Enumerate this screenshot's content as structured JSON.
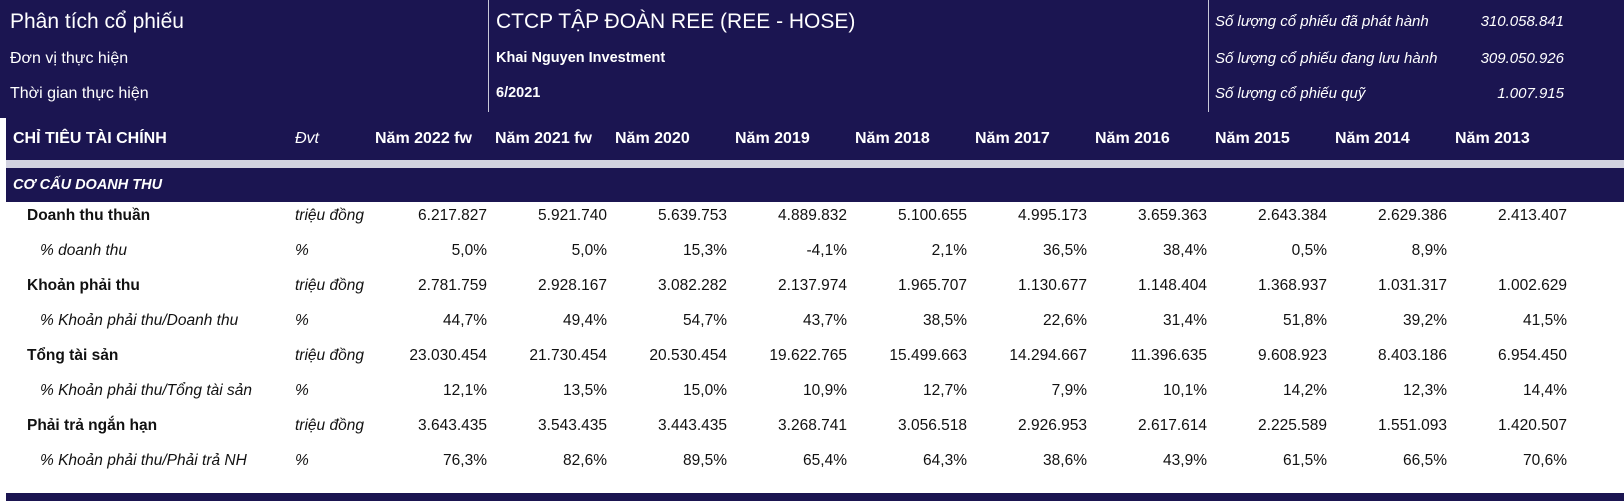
{
  "header": {
    "title": "Phân tích cổ phiếu",
    "unit_label": "Đơn vị thực hiện",
    "time_label": "Thời gian thực hiện",
    "company": "CTCP TẬP ĐOÀN REE (REE - HOSE)",
    "unit_value": "Khai Nguyen Investment",
    "time_value": "6/2021",
    "issued_label": "Số lượng cổ phiếu đã phát hành",
    "issued_value": "310.058.841",
    "outstanding_label": "Số lượng cổ phiếu đang lưu hành",
    "outstanding_value": "309.050.926",
    "treasury_label": "Số lượng cổ phiếu quỹ",
    "treasury_value": "1.007.915"
  },
  "table": {
    "col_indicator": "CHỈ TIÊU TÀI CHÍNH",
    "col_unit": "Đvt",
    "years": [
      "Năm 2022 fw",
      "Năm 2021 fw",
      "Năm 2020",
      "Năm 2019",
      "Năm 2018",
      "Năm 2017",
      "Năm 2016",
      "Năm 2015",
      "Năm 2014",
      "Năm 2013"
    ],
    "section_title": "CƠ CẤU DOANH THU",
    "rows": [
      {
        "label": "Doanh thu thuần",
        "unit": "triệu đồng",
        "bold": true,
        "values": [
          "6.217.827",
          "5.921.740",
          "5.639.753",
          "4.889.832",
          "5.100.655",
          "4.995.173",
          "3.659.363",
          "2.643.384",
          "2.629.386",
          "2.413.407"
        ]
      },
      {
        "label": "% doanh thu",
        "unit": "%",
        "bold": false,
        "values": [
          "5,0%",
          "5,0%",
          "15,3%",
          "-4,1%",
          "2,1%",
          "36,5%",
          "38,4%",
          "0,5%",
          "8,9%",
          ""
        ]
      },
      {
        "label": "Khoản phải thu",
        "unit": "triệu đồng",
        "bold": true,
        "values": [
          "2.781.759",
          "2.928.167",
          "3.082.282",
          "2.137.974",
          "1.965.707",
          "1.130.677",
          "1.148.404",
          "1.368.937",
          "1.031.317",
          "1.002.629"
        ]
      },
      {
        "label": "% Khoản phải thu/Doanh thu",
        "unit": "%",
        "bold": false,
        "values": [
          "44,7%",
          "49,4%",
          "54,7%",
          "43,7%",
          "38,5%",
          "22,6%",
          "31,4%",
          "51,8%",
          "39,2%",
          "41,5%"
        ]
      },
      {
        "label": "Tổng tài sản",
        "unit": "triệu đồng",
        "bold": true,
        "values": [
          "23.030.454",
          "21.730.454",
          "20.530.454",
          "19.622.765",
          "15.499.663",
          "14.294.667",
          "11.396.635",
          "9.608.923",
          "8.403.186",
          "6.954.450"
        ]
      },
      {
        "label": "% Khoản phải thu/Tổng tài sản",
        "unit": "%",
        "bold": false,
        "values": [
          "12,1%",
          "13,5%",
          "15,0%",
          "10,9%",
          "12,7%",
          "7,9%",
          "10,1%",
          "14,2%",
          "12,3%",
          "14,4%"
        ]
      },
      {
        "label": "Phải trả ngắn hạn",
        "unit": "triệu đồng",
        "bold": true,
        "values": [
          "3.643.435",
          "3.543.435",
          "3.443.435",
          "3.268.741",
          "3.056.518",
          "2.926.953",
          "2.617.614",
          "2.225.589",
          "1.551.093",
          "1.420.507"
        ]
      },
      {
        "label": "% Khoản phải thu/Phải trả NH",
        "unit": "%",
        "bold": false,
        "values": [
          "76,3%",
          "82,6%",
          "89,5%",
          "65,4%",
          "64,3%",
          "38,6%",
          "43,9%",
          "61,5%",
          "66,5%",
          "70,6%"
        ]
      }
    ]
  },
  "colors": {
    "navy": "#1b1551",
    "separator": "#d2d2e0"
  }
}
